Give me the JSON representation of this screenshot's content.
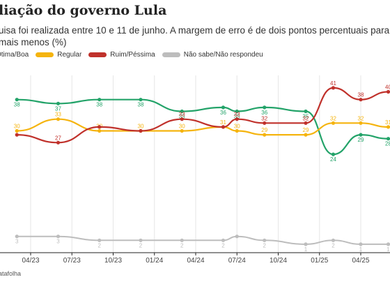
{
  "header": {
    "title": "liação do governo Lula",
    "subtitle": "uisa foi realizada entre 10 e 11 de junho. A margem de erro é de dois pontos percentuais para mais menos (%)"
  },
  "legend": [
    {
      "label": "Ótima/Boa",
      "color": "#23a369"
    },
    {
      "label": "Regular",
      "color": "#f5b40f"
    },
    {
      "label": "Ruim/Péssima",
      "color": "#c0312b"
    },
    {
      "label": "Não sabe/Não respondeu",
      "color": "#bdbdbd"
    }
  ],
  "footer": {
    "source": "atafolha"
  },
  "chart_data": {
    "type": "line",
    "xlabel": "",
    "ylabel": "",
    "ylim": [
      0,
      45
    ],
    "grid": "vertical",
    "legend_position": "top",
    "x_ticks": [
      "04/23",
      "07/23",
      "10/23",
      "01/24",
      "04/24",
      "07/24",
      "10/24",
      "01/25",
      "04/25"
    ],
    "x": [
      "03/23",
      "06/23",
      "09/23",
      "12/23",
      "03/24",
      "06/24",
      "07/24",
      "09/24",
      "12/24",
      "02/25",
      "04/25",
      "06/25"
    ],
    "series": [
      {
        "name": "Ótima/Boa",
        "color": "#23a369",
        "values": [
          38,
          37,
          38,
          38,
          35,
          36,
          35,
          36,
          35,
          24,
          29,
          28
        ],
        "labels": [
          "38",
          "37",
          "38",
          "38",
          "35",
          "36",
          "35",
          "36",
          "35",
          "24",
          "29",
          "28"
        ]
      },
      {
        "name": "Regular",
        "color": "#f5b40f",
        "values": [
          30,
          33,
          30,
          30,
          30,
          31,
          30,
          29,
          29,
          32,
          32,
          31
        ],
        "labels": [
          "30",
          "33",
          "30",
          "30",
          "30",
          "31",
          "30",
          "29",
          "29",
          "32",
          "32",
          "31"
        ]
      },
      {
        "name": "Ruim/Péssima",
        "color": "#c0312b",
        "values": [
          29,
          27,
          31,
          30,
          33,
          31,
          33,
          32,
          32,
          41,
          38,
          40
        ],
        "labels": [
          "",
          "27",
          "",
          "",
          "33",
          "",
          "33",
          "32",
          "32",
          "41",
          "38",
          "40"
        ]
      },
      {
        "name": "Não sabe/Não respondeu",
        "color": "#bdbdbd",
        "values": [
          3,
          3,
          2,
          2,
          2,
          2,
          3,
          2,
          1,
          2,
          1,
          1
        ],
        "labels": [
          "3",
          "3",
          "2",
          "2",
          "2",
          "2",
          "",
          "2",
          "1",
          "2",
          "1",
          "1"
        ]
      }
    ]
  }
}
